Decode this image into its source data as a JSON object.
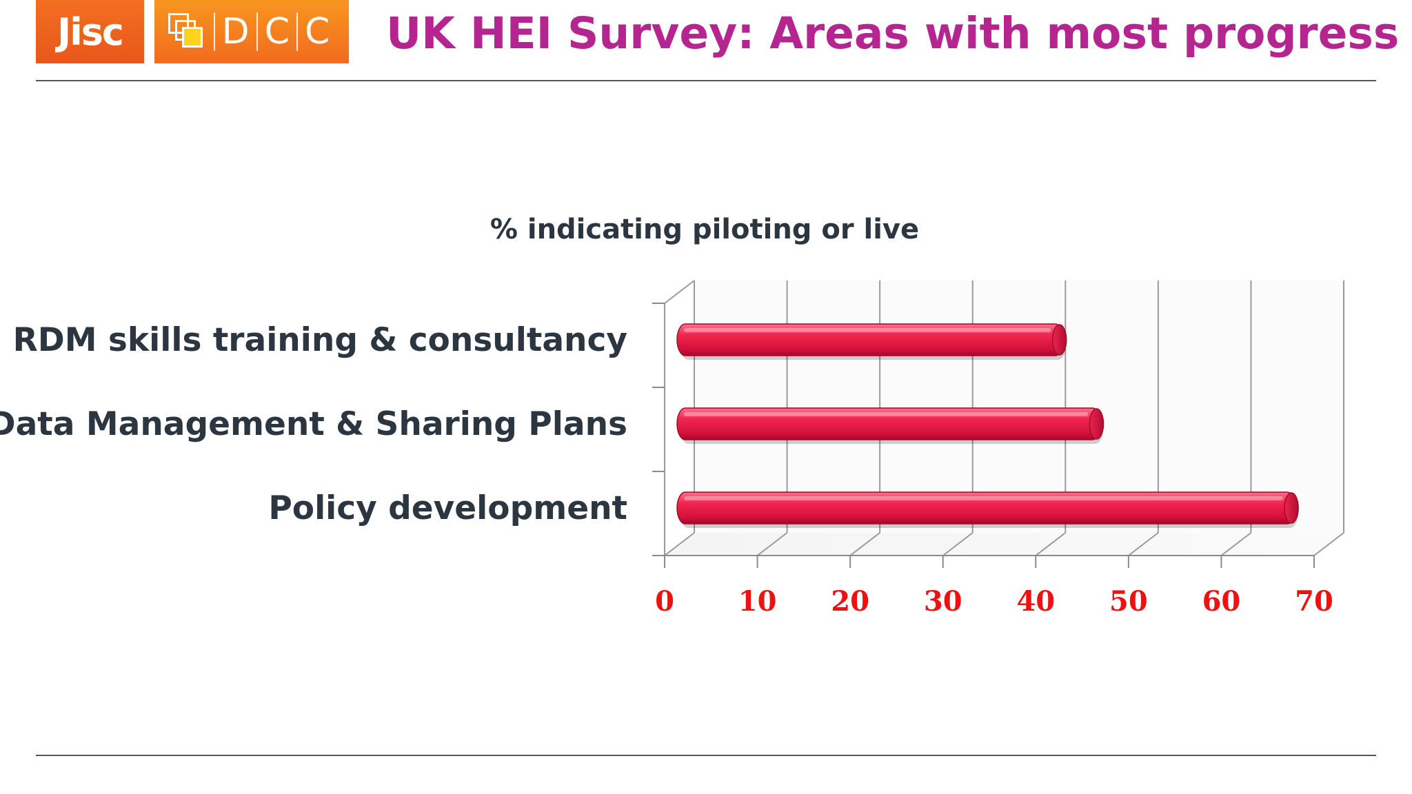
{
  "logos": {
    "jisc": "Jisc",
    "dcc": [
      "D",
      "C",
      "C"
    ]
  },
  "slide": {
    "title": "UK HEI Survey: Areas with most progress"
  },
  "colors": {
    "title": "#b5258f",
    "bar": "#e8264f",
    "tick_labels": "#ee1111",
    "text": "#2b3640"
  },
  "chart_data": {
    "type": "bar",
    "orientation": "horizontal",
    "style": "3d-cylinder",
    "title": "% indicating piloting or live",
    "categories": [
      "RDM skills training & consultancy",
      "Data Management & Sharing Plans",
      "Policy development"
    ],
    "values": [
      43,
      47,
      68
    ],
    "xlim": [
      0,
      70
    ],
    "xticks": [
      0,
      10,
      20,
      30,
      40,
      50,
      60,
      70
    ],
    "xtick_labels": [
      "0",
      "10",
      "20",
      "30",
      "40",
      "50",
      "60",
      "70"
    ],
    "grid": true,
    "legend": "none"
  }
}
